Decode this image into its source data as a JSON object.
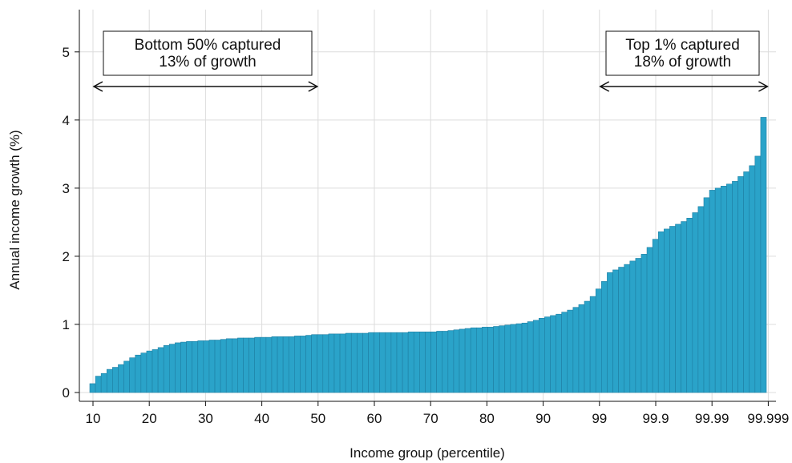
{
  "chart_data": {
    "type": "bar",
    "title": "",
    "xlabel": "Income group (percentile)",
    "ylabel": "Annual income growth (%)",
    "ylim": [
      0,
      5.5
    ],
    "yticks": [
      0,
      1,
      2,
      3,
      4,
      5
    ],
    "grid": true,
    "x_tick_labels": [
      "10",
      "20",
      "30",
      "40",
      "50",
      "60",
      "70",
      "80",
      "90",
      "99",
      "99.9",
      "99.99",
      "99.999"
    ],
    "bar_color": "#2aa3c9",
    "bar_edge_color": "#1f7fa3",
    "values": [
      0.13,
      0.24,
      0.28,
      0.34,
      0.37,
      0.41,
      0.46,
      0.51,
      0.55,
      0.58,
      0.61,
      0.63,
      0.66,
      0.69,
      0.71,
      0.73,
      0.74,
      0.75,
      0.75,
      0.76,
      0.76,
      0.77,
      0.77,
      0.78,
      0.79,
      0.79,
      0.8,
      0.8,
      0.8,
      0.81,
      0.81,
      0.81,
      0.82,
      0.82,
      0.82,
      0.82,
      0.83,
      0.83,
      0.84,
      0.85,
      0.85,
      0.85,
      0.86,
      0.86,
      0.86,
      0.87,
      0.87,
      0.87,
      0.87,
      0.88,
      0.88,
      0.88,
      0.88,
      0.88,
      0.88,
      0.88,
      0.89,
      0.89,
      0.89,
      0.89,
      0.89,
      0.9,
      0.9,
      0.91,
      0.92,
      0.93,
      0.94,
      0.95,
      0.95,
      0.96,
      0.96,
      0.97,
      0.98,
      0.99,
      1.0,
      1.01,
      1.02,
      1.04,
      1.06,
      1.09,
      1.11,
      1.13,
      1.15,
      1.18,
      1.21,
      1.25,
      1.29,
      1.34,
      1.41,
      1.52,
      1.63,
      1.76,
      1.8,
      1.84,
      1.88,
      1.93,
      1.97,
      2.03,
      2.13,
      2.25,
      2.36,
      2.4,
      2.44,
      2.47,
      2.51,
      2.56,
      2.64,
      2.73,
      2.86,
      2.97,
      3.0,
      3.03,
      3.06,
      3.1,
      3.17,
      3.24,
      3.33,
      3.47,
      4.04
    ],
    "annotations": [
      {
        "text_lines": [
          "Bottom 50% captured",
          "13% of growth"
        ],
        "arrow_from": "10",
        "arrow_to": "50"
      },
      {
        "text_lines": [
          "Top 1% captured",
          "18% of growth"
        ],
        "arrow_from": "99",
        "arrow_to": "99.999"
      }
    ]
  }
}
